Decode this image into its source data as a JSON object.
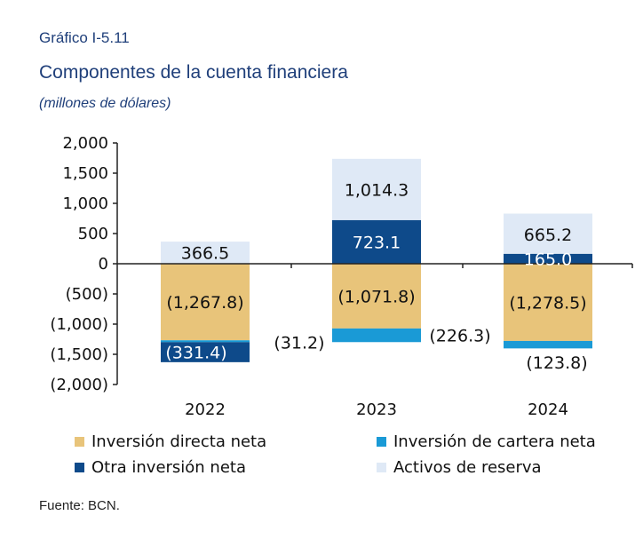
{
  "header": {
    "label": "Gráfico I-5.11",
    "title": "Componentes de la cuenta financiera",
    "subtitle": "(millones de dólares)"
  },
  "source": "Fuente: BCN.",
  "chart_data": {
    "type": "bar",
    "stacked": true,
    "categories": [
      "2022",
      "2023",
      "2024"
    ],
    "ylim": [
      -2000,
      2000
    ],
    "yticks": [
      2000,
      1500,
      1000,
      500,
      0,
      -500,
      -1000,
      -1500,
      -2000
    ],
    "ytick_labels": [
      "2,000",
      "1,500",
      "1,000",
      "500",
      "0",
      "(500)",
      "(1,000)",
      "(1,500)",
      "(2,000)"
    ],
    "legend_position": "bottom",
    "series": [
      {
        "name": "Inversión directa neta",
        "color": "#e8c47a",
        "values": [
          -1267.8,
          -1071.8,
          -1278.5
        ],
        "labels": [
          "(1,267.8)",
          "(1,071.8)",
          "(1,278.5)"
        ]
      },
      {
        "name": "Inversión de cartera neta",
        "color": "#1a9ad6",
        "values": [
          -31.2,
          -226.3,
          -123.8
        ],
        "labels": [
          "(31.2)",
          "(226.3)",
          "(123.8)"
        ]
      },
      {
        "name": "Otra inversión neta",
        "color": "#0e4a8a",
        "values": [
          -331.4,
          723.1,
          165.0
        ],
        "labels": [
          "(331.4)",
          "723.1",
          "165.0"
        ]
      },
      {
        "name": "Activos de reserva",
        "color": "#dfe9f6",
        "values": [
          366.5,
          1014.3,
          665.2
        ],
        "labels": [
          "366.5",
          "1,014.3",
          "665.2"
        ]
      }
    ]
  }
}
